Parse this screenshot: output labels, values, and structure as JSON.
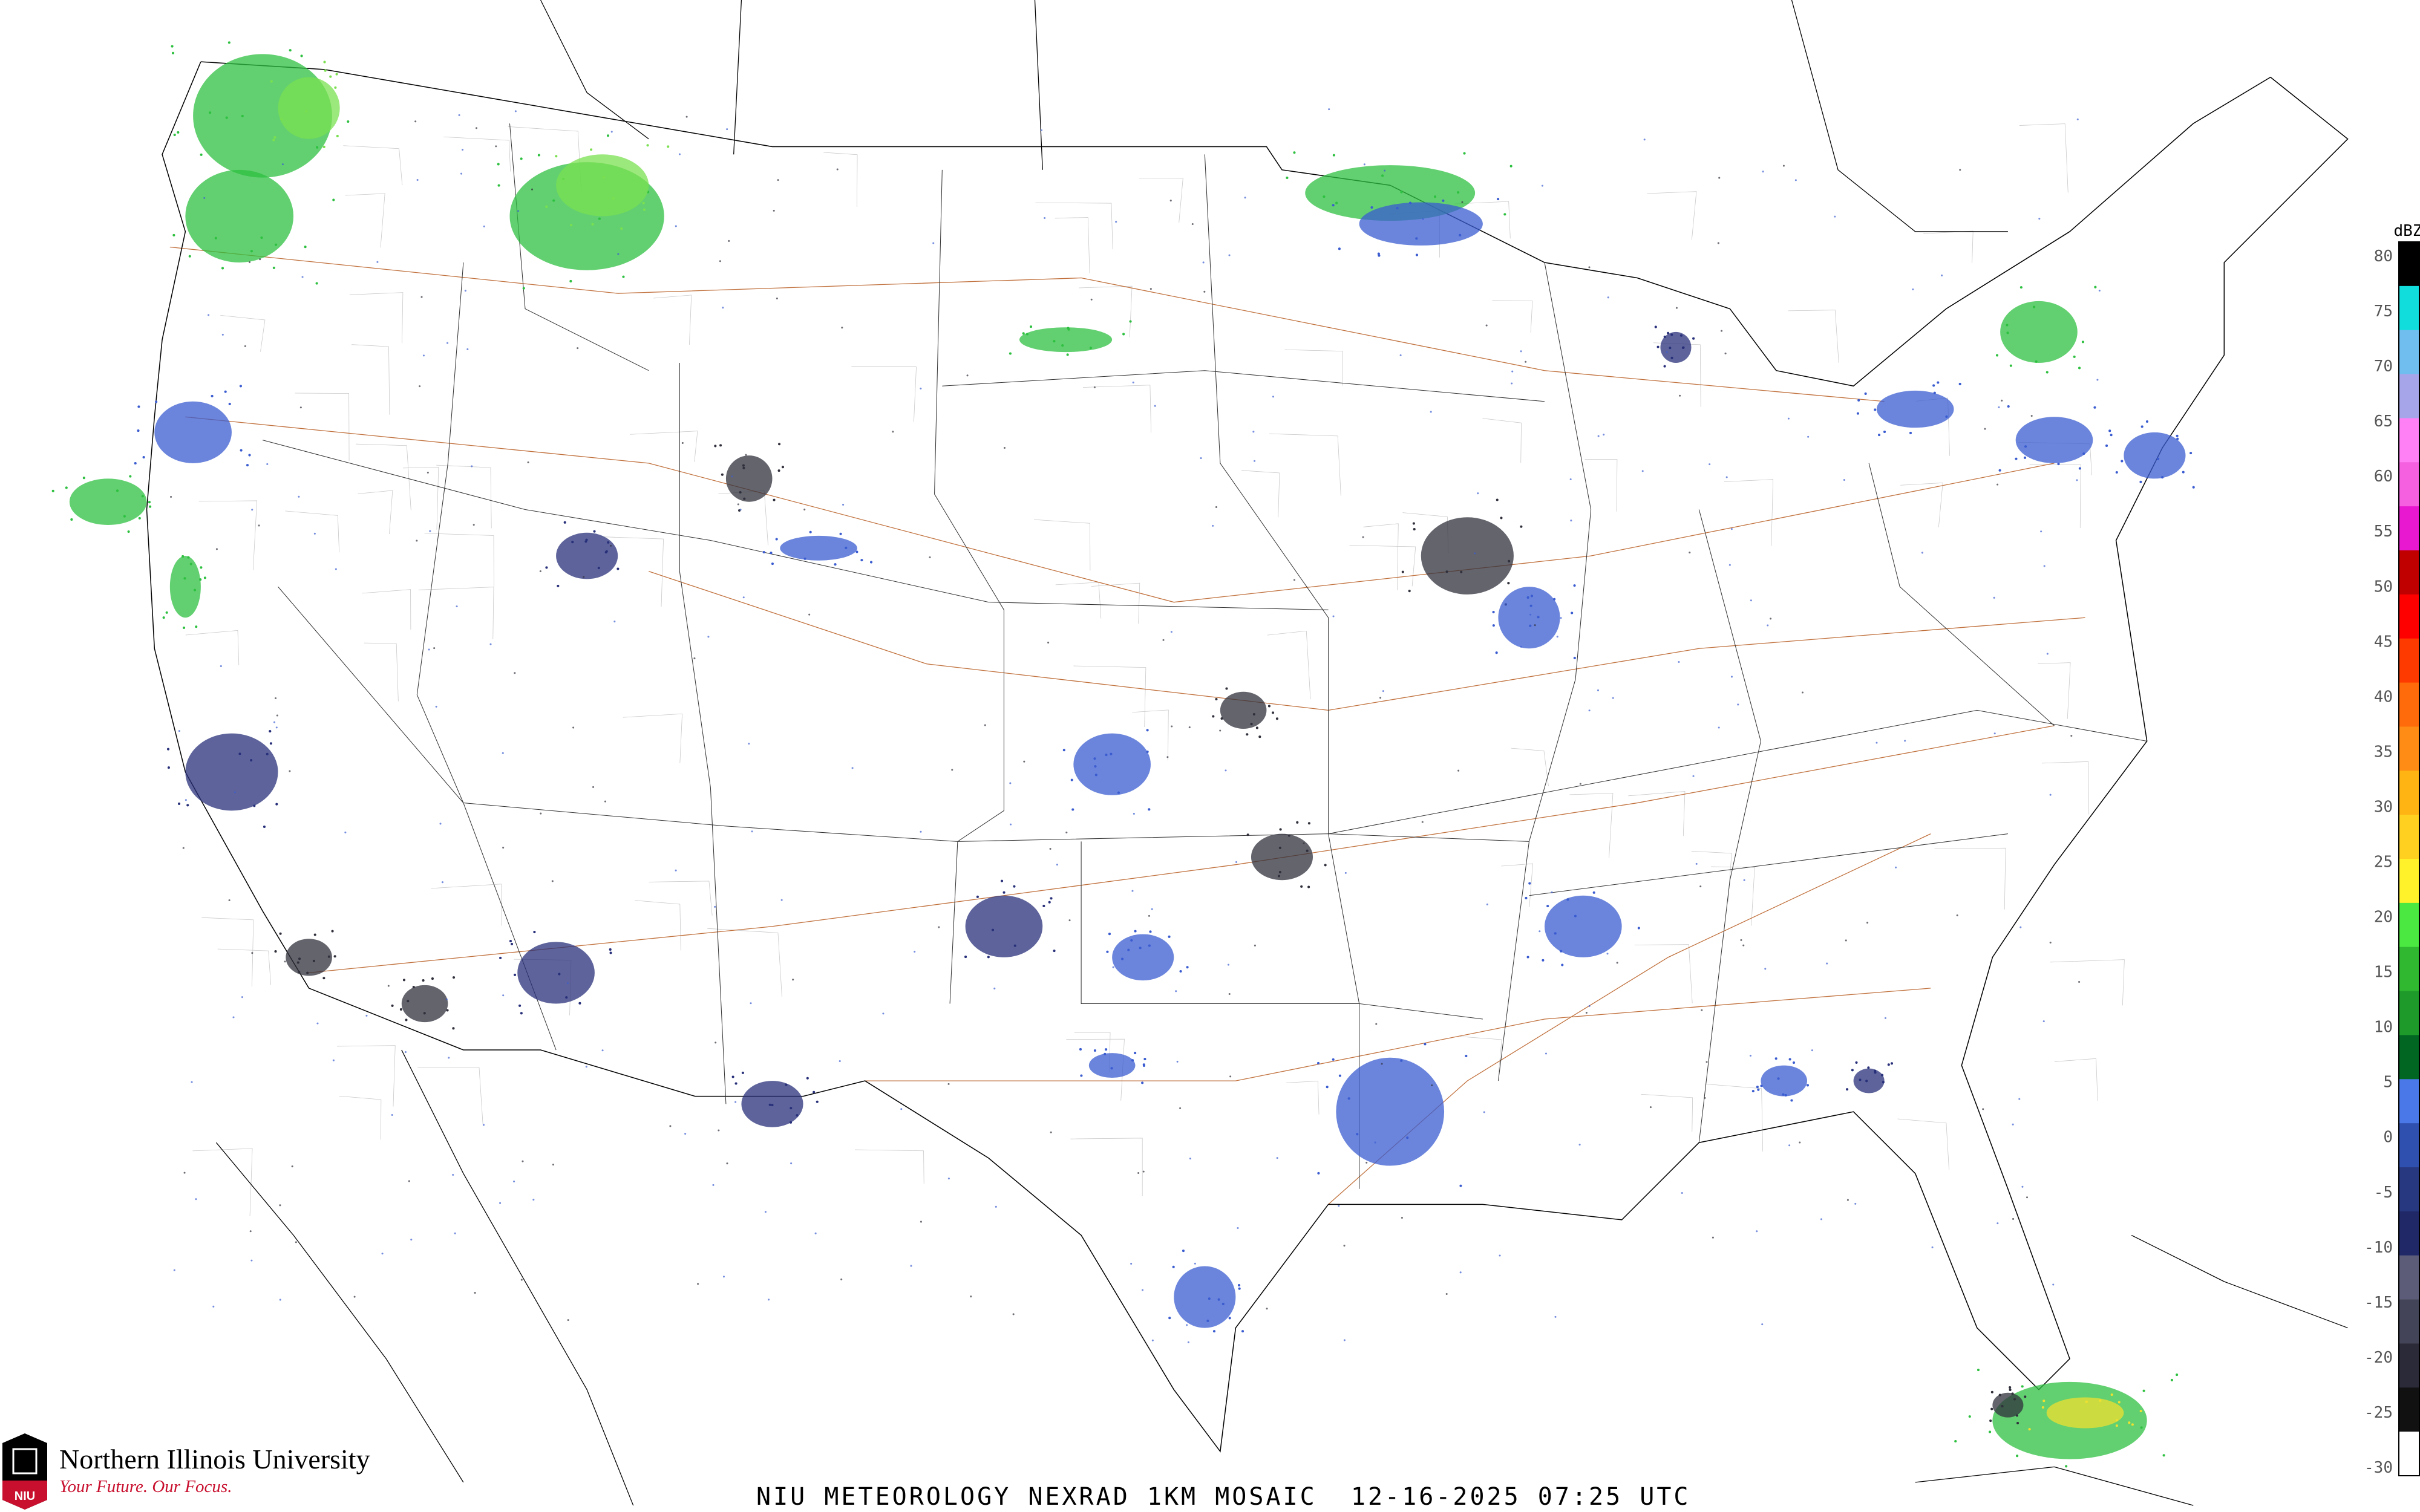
{
  "title": "NIU METEOROLOGY NEXRAD 1KM MOSAIC  12-16-2025 07:25 UTC",
  "logo": {
    "name": "Northern Illinois University",
    "tagline": "Your Future. Our Focus.",
    "mark": "NIU"
  },
  "colorbar": {
    "unit": "dBZ",
    "ticks": [
      "80",
      "75",
      "70",
      "65",
      "60",
      "55",
      "50",
      "45",
      "40",
      "35",
      "30",
      "25",
      "20",
      "15",
      "10",
      "5",
      "0",
      "-5",
      "-10",
      "-15",
      "-20",
      "-25",
      "-30"
    ],
    "colors": [
      "#000000",
      "#11dddd",
      "#70bef0",
      "#a7a5ea",
      "#ff80f4",
      "#f460e0",
      "#e818d0",
      "#c00000",
      "#ff0000",
      "#ff3a00",
      "#ff6a0a",
      "#ff8c14",
      "#ffb414",
      "#ffd020",
      "#fff22a",
      "#4ae840",
      "#30b830",
      "#1e9a2a",
      "#006622",
      "#4a78e8",
      "#3050b0",
      "#283880",
      "#202868",
      "#5c5c78",
      "#444458",
      "#2a2a38",
      "#111111",
      "#ffffff"
    ]
  },
  "radar_colors": {
    "green": "#2ec040",
    "light_green": "#7ae050",
    "blue": "#3a5cd0",
    "navy": "#28307a",
    "dark": "#30303c",
    "yellow": "#f0e030"
  },
  "map_colors": {
    "border": "#000000",
    "county": "#c8c8c8",
    "highway": "#c0703c"
  }
}
